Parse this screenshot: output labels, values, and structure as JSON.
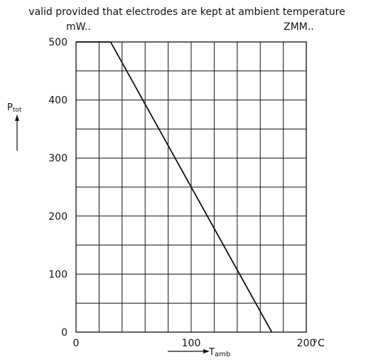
{
  "note": "valid provided that electrodes are kept at ambient temperature",
  "unit_left": "mW..",
  "unit_right": "ZMM..",
  "chart_data": {
    "type": "line",
    "ylabel_main": "P",
    "ylabel_sub": "tot",
    "xlabel_main": "T",
    "xlabel_sub": "amb",
    "x_unit": "°C",
    "xlim": [
      0,
      200
    ],
    "ylim": [
      0,
      500
    ],
    "x_ticks": [
      0,
      100,
      200
    ],
    "y_ticks": [
      0,
      100,
      200,
      300,
      400,
      500
    ],
    "x_grid_step": 20,
    "y_grid_step": 50,
    "grid": true,
    "series": [
      {
        "x": [
          0,
          30,
          170
        ],
        "y": [
          500,
          500,
          0
        ]
      }
    ]
  }
}
